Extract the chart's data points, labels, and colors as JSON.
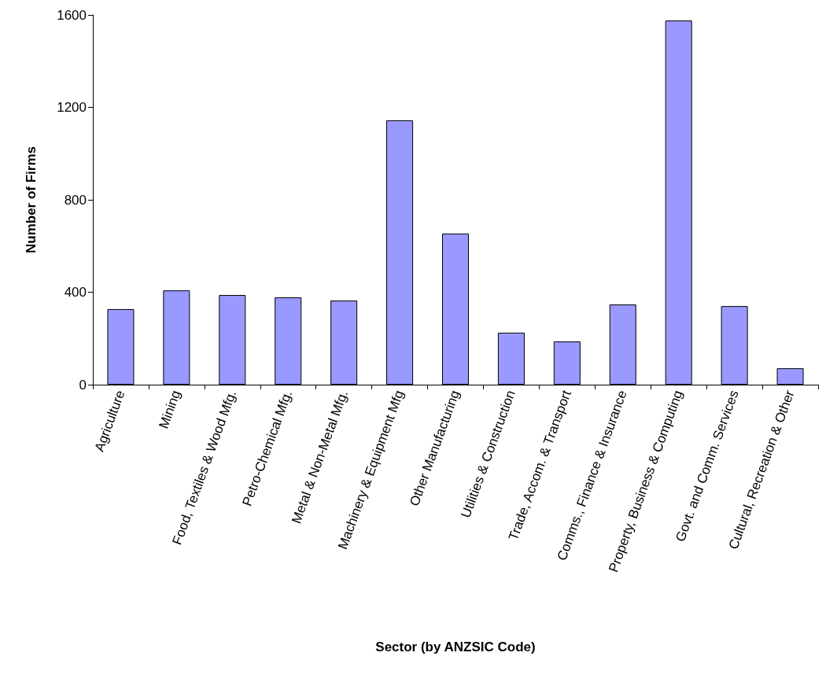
{
  "chart_data": {
    "type": "bar",
    "xlabel": "Sector (by ANZSIC Code)",
    "ylabel": "Number of Firms",
    "categories": [
      "Agriculture",
      "Mining",
      "Food, Textiles & Wood Mfg.",
      "Petro-Chemical Mfg.",
      "Metal & Non-Metal Mfg.",
      "Machinery & Equipment Mfg",
      "Other Manufacturing",
      "Utilities & Construction",
      "Trade, Accom. & Transport",
      "Comms., Finance & Insurance",
      "Property, Business & Computing",
      "Govt. and Comm. Services",
      "Cultural, Recreation & Other"
    ],
    "values": [
      327,
      408,
      388,
      378,
      364,
      1144,
      654,
      225,
      187,
      347,
      1576,
      340,
      71
    ],
    "color": "#9999ff",
    "ylim": [
      0,
      1600
    ],
    "yticks": [
      0,
      400,
      800,
      1200,
      1600
    ],
    "grid": false
  }
}
